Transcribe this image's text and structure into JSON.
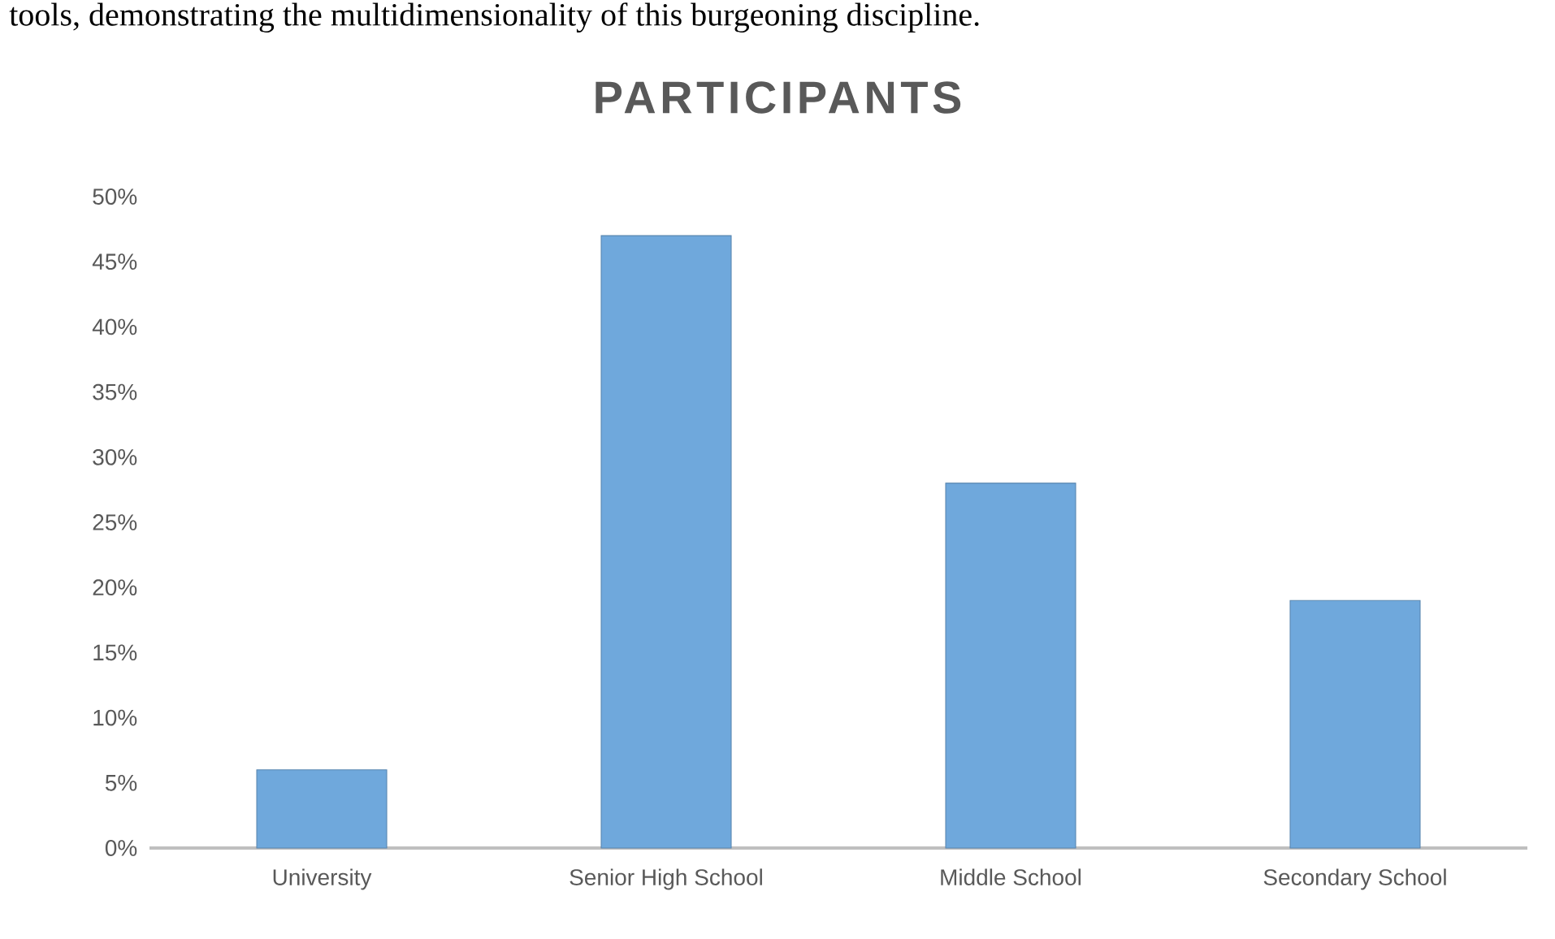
{
  "chart_data": {
    "type": "bar",
    "title": "PARTICIPANTS",
    "categories": [
      "University",
      "Senior High School",
      "Middle School",
      "Secondary School"
    ],
    "values": [
      6,
      47,
      28,
      19
    ],
    "color": "#6fa8dc",
    "ylim": [
      0,
      50
    ],
    "yticks": [
      {
        "value": 0,
        "label": "0%"
      },
      {
        "value": 5,
        "label": "5%"
      },
      {
        "value": 10,
        "label": "10%"
      },
      {
        "value": 15,
        "label": "15%"
      },
      {
        "value": 20,
        "label": "20%"
      },
      {
        "value": 25,
        "label": "25%"
      },
      {
        "value": 30,
        "label": "30%"
      },
      {
        "value": 35,
        "label": "35%"
      },
      {
        "value": 40,
        "label": "40%"
      },
      {
        "value": 45,
        "label": "45%"
      },
      {
        "value": 50,
        "label": "50%"
      }
    ],
    "grid": false,
    "annotations": [
      "tools, demonstrating the multidimensionality of this burgeoning discipline."
    ]
  }
}
